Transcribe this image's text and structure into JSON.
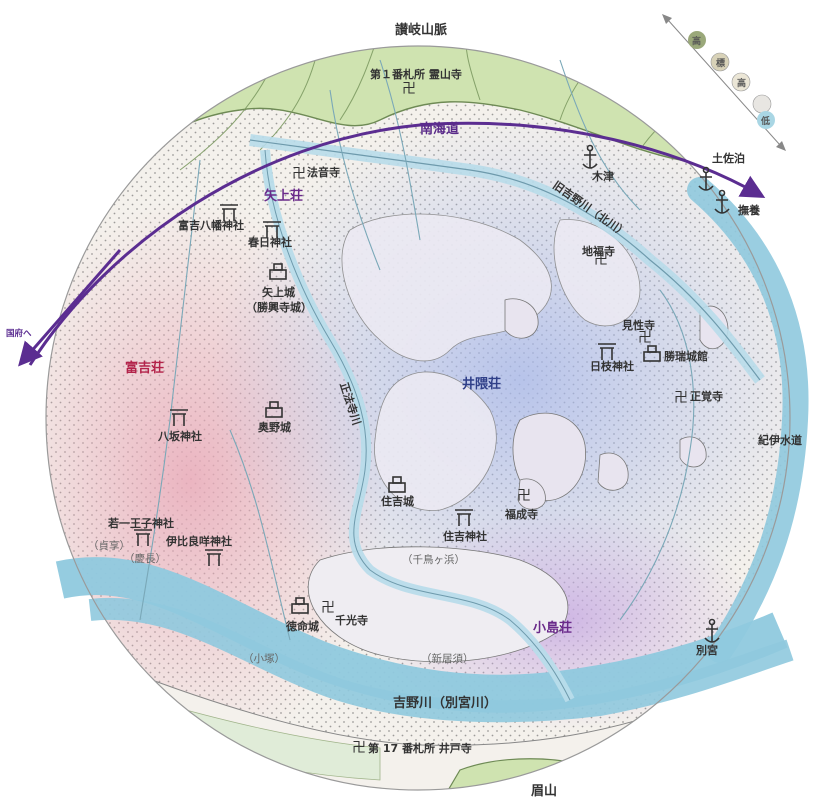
{
  "colors": {
    "mountain": "#cfe3b0",
    "river": "#8fc9de",
    "plain": "#f3f0ea",
    "shou_tomiyoshi": "#e8b6c4",
    "shou_inokuma": "#bcc8ec",
    "shou_kojima": "#c8b4e0",
    "road": "#5b2d91"
  },
  "labels": {
    "mountains": "讃岐山脈",
    "fudasho1": "第１番札所 霊山寺",
    "nankaido": "南海道",
    "tosadomari": "土佐泊",
    "bujo": "撫養",
    "kitsu": "木津",
    "kyu_yoshino": "旧吉野川（北川）",
    "hoonji": "法音寺",
    "yagami_sho": "矢上荘",
    "tomiyoshi_hachiman": "富吉八幡神社",
    "kasuga": "春日神社",
    "yagami_castle": "矢上城",
    "yagami_castle_alt": "（勝興寺城）",
    "kokufu": "国府へ",
    "chifukuji": "地福寺",
    "kenshoji": "見性寺",
    "shozui_castle": "勝瑞城館",
    "hiyoshi": "日枝神社",
    "shokakuji": "正覚寺",
    "tomiyoshi_sho": "富吉荘",
    "inokuma_sho": "井隈荘",
    "shobouji_river": "正法寺川",
    "yasaka": "八坂神社",
    "okuno_castle": "奥野城",
    "kii_road": "紀伊水道",
    "sumiyoshi_castle": "住吉城",
    "fukujoji": "福成寺",
    "sumiyoshi_shrine": "住吉神社",
    "wakaichi_oji": "若一王子神社",
    "teikyo": "（貞享）",
    "ibiraki": "伊比良咩神社",
    "keicho": "（慶長）",
    "chidorigahama": "（千鳥ヶ浜）",
    "tokumei_castle": "徳命城",
    "senkoji": "千光寺",
    "kojima_sho": "小島荘",
    "betsumiya": "別宮",
    "komatsuka": "（小塚）",
    "shinisu": "（新居須）",
    "yoshino_river": "吉野川（別宮川）",
    "fudasho17": "第 17 番札所 井戸寺",
    "bizan": "眉山"
  },
  "legend": {
    "high": "高",
    "mid1": "標",
    "mid2": "高",
    "low": "低"
  }
}
